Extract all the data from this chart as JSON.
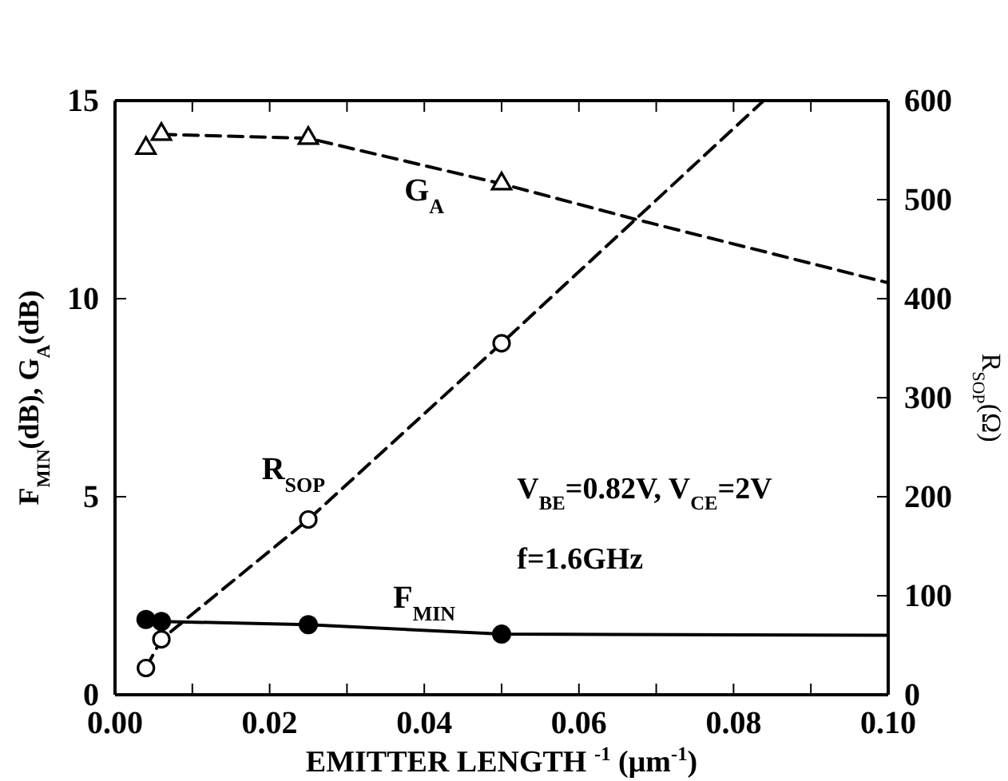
{
  "chart_data": {
    "type": "line",
    "xlabel": "EMITTER LENGTH $^{-1}$ (μm$^{-1}$)",
    "ylabel": "F$_{MIN}$(dB), G$_{A}$(dB)",
    "y2label": "R$_{SOP}$(Ω)",
    "xlim": [
      0,
      0.1
    ],
    "xticks": [
      {
        "value": 0,
        "label": "0.00"
      },
      {
        "value": 0.01,
        "label": null
      },
      {
        "value": 0.02,
        "label": "0.02"
      },
      {
        "value": 0.03,
        "label": null
      },
      {
        "value": 0.04,
        "label": "0.04"
      },
      {
        "value": 0.05,
        "label": null
      },
      {
        "value": 0.06,
        "label": "0.06"
      },
      {
        "value": 0.07,
        "label": null
      },
      {
        "value": 0.08,
        "label": "0.08"
      },
      {
        "value": 0.09,
        "label": null
      },
      {
        "value": 0.1,
        "label": "0.10"
      }
    ],
    "ylim": [
      0,
      15
    ],
    "yticks": [
      0,
      5,
      10,
      15
    ],
    "y2lim": [
      0,
      600
    ],
    "y2ticks": [
      0,
      100,
      200,
      300,
      400,
      500,
      600
    ],
    "grid": false,
    "legend": false,
    "series": [
      {
        "type": "line",
        "name": "G$_{A}$",
        "color": "#000000",
        "line_style": "dashed",
        "marker": "none",
        "x": [
          0.006,
          0.025,
          0.05,
          0.0674,
          0.1
        ],
        "values": [
          14.15,
          14.05,
          12.9,
          12.0,
          10.4
        ]
      },
      {
        "type": "scatter",
        "color": "#000000",
        "marker": "triangle",
        "x": [
          0.004,
          0.006,
          0.025,
          0.05
        ],
        "values": [
          13.8,
          14.15,
          14.05,
          12.9
        ]
      },
      {
        "type": "line",
        "name": "R$_{SOP}$",
        "axis": "y2",
        "color": "#000000",
        "line_style": "dashed",
        "marker": "none",
        "x": [
          0.004,
          0.006,
          0.025,
          0.05,
          0.0839
        ],
        "values": [
          27,
          56,
          177,
          355,
          600
        ]
      },
      {
        "type": "scatter",
        "axis": "y2",
        "color": "#000000",
        "marker": "circle",
        "x": [
          0.004,
          0.006,
          0.025,
          0.05
        ],
        "values": [
          27,
          56,
          177,
          355
        ]
      },
      {
        "type": "line",
        "name": "F$_{MIN}$",
        "color": "#000000",
        "line_style": "solid",
        "marker": "none",
        "x": [
          0.006,
          0.025,
          0.05,
          0.1
        ],
        "values": [
          1.85,
          1.77,
          1.53,
          1.5
        ]
      },
      {
        "type": "scatter",
        "color": "#000000",
        "marker": "filled-circle",
        "x": [
          0.004,
          0.006,
          0.025,
          0.05
        ],
        "values": [
          1.9,
          1.85,
          1.77,
          1.53
        ]
      }
    ],
    "annotations": [
      "V$_{BE}$=0.82V, V$_{CE}$=2V",
      "f=1.6GHz"
    ]
  }
}
